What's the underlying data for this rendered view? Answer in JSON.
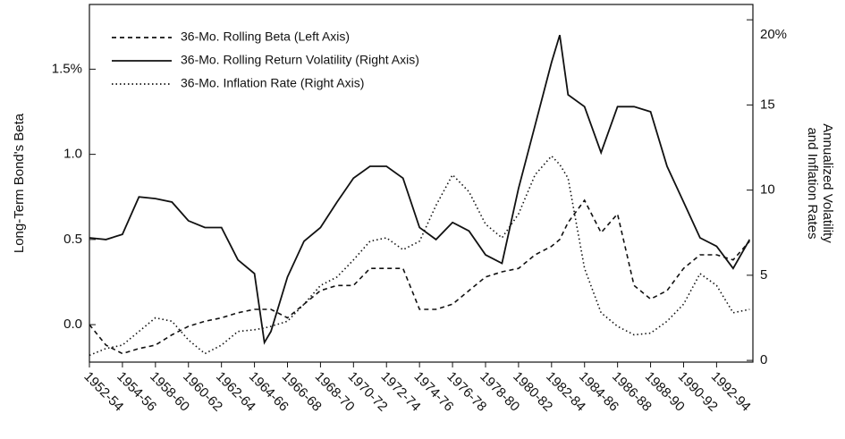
{
  "chart_data": {
    "type": "line",
    "ylabel": "Long-Term Bond's Beta",
    "y2label": [
      "Annualized Volatility",
      "and Inflation Rates"
    ],
    "xlim": [
      1952,
      1992.2
    ],
    "xticks": [
      {
        "value": 1952,
        "label": "1952-54"
      },
      {
        "value": 1954,
        "label": "1954-56"
      },
      {
        "value": 1956,
        "label": "1958-60"
      },
      {
        "value": 1958,
        "label": "1960-62"
      },
      {
        "value": 1960,
        "label": "1962-64"
      },
      {
        "value": 1962,
        "label": "1964-66"
      },
      {
        "value": 1964,
        "label": "1966-68"
      },
      {
        "value": 1966,
        "label": "1968-70"
      },
      {
        "value": 1968,
        "label": "1970-72"
      },
      {
        "value": 1970,
        "label": "1972-74"
      },
      {
        "value": 1972,
        "label": "1974-76"
      },
      {
        "value": 1974,
        "label": "1976-78"
      },
      {
        "value": 1976,
        "label": "1978-80"
      },
      {
        "value": 1978,
        "label": "1980-82"
      },
      {
        "value": 1980,
        "label": "1982-84"
      },
      {
        "value": 1982,
        "label": "1984-86"
      },
      {
        "value": 1984,
        "label": "1986-88"
      },
      {
        "value": 1986,
        "label": "1988-90"
      },
      {
        "value": 1988,
        "label": "1990-92"
      },
      {
        "value": 1990,
        "label": "1992-94"
      }
    ],
    "ylim": [
      -0.22,
      1.88
    ],
    "yticks": [
      {
        "value": 0,
        "label": "0.0"
      },
      0.5,
      {
        "value": 1,
        "label": "1.0"
      },
      {
        "value": 1.5,
        "label": "1.5%"
      }
    ],
    "y2lim": [
      -0.1,
      20.9
    ],
    "y2ticks": [
      0,
      5,
      10,
      15,
      {
        "value": 20,
        "label": "20%"
      }
    ],
    "x": [
      1952,
      1953,
      1954,
      1955,
      1956,
      1957,
      1958,
      1959,
      1960,
      1961,
      1962,
      1962.6,
      1963,
      1964,
      1965,
      1966,
      1967,
      1968,
      1969,
      1970,
      1971,
      1972,
      1973,
      1974,
      1975,
      1976,
      1977,
      1978,
      1979,
      1980,
      1980.5,
      1981,
      1982,
      1983,
      1984,
      1985,
      1986,
      1987,
      1988,
      1989,
      1990,
      1991,
      1992
    ],
    "series": [
      {
        "name": "36-Mo. Rolling Beta (Left Axis)",
        "color": "#111111",
        "style": "dashed",
        "values": [
          0.0,
          -0.12,
          -0.17,
          -0.14,
          -0.12,
          -0.06,
          -0.01,
          0.02,
          0.04,
          0.07,
          0.09,
          0.09,
          0.09,
          0.04,
          0.12,
          0.2,
          0.23,
          0.23,
          0.33,
          0.33,
          0.33,
          0.09,
          0.09,
          0.12,
          0.2,
          0.28,
          0.31,
          0.33,
          0.41,
          0.46,
          0.5,
          0.6,
          0.73,
          0.54,
          0.65,
          0.23,
          0.15,
          0.2,
          0.33,
          0.41,
          0.41,
          0.38,
          0.49
        ]
      },
      {
        "name": "36-Mo. Rolling Return Volatility (Right Axis)",
        "color": "#111111",
        "style": "solid",
        "axis": "y2",
        "values": [
          7.2,
          7.1,
          7.4,
          9.6,
          9.5,
          9.3,
          8.2,
          7.8,
          7.8,
          5.9,
          5.1,
          1.05,
          1.7,
          4.9,
          7.0,
          7.8,
          9.3,
          10.7,
          11.4,
          11.4,
          10.7,
          7.8,
          7.1,
          8.1,
          7.6,
          6.2,
          5.7,
          10.1,
          13.8,
          17.5,
          19.1,
          15.6,
          14.9,
          12.2,
          14.9,
          14.9,
          14.6,
          11.4,
          9.3,
          7.2,
          6.7,
          5.4,
          7.1
        ]
      },
      {
        "name": "36-Mo. Inflation Rate (Right Axis)",
        "color": "#111111",
        "style": "dotted",
        "axis": "y2",
        "values": [
          0.3,
          0.7,
          0.9,
          1.7,
          2.5,
          2.3,
          1.2,
          0.4,
          0.9,
          1.7,
          1.8,
          1.9,
          2.0,
          2.3,
          3.3,
          4.4,
          4.9,
          5.9,
          7.0,
          7.2,
          6.5,
          7.0,
          9.1,
          10.9,
          9.9,
          8.0,
          7.2,
          8.6,
          10.9,
          12.0,
          11.5,
          10.7,
          5.4,
          2.8,
          2.0,
          1.5,
          1.6,
          2.3,
          3.3,
          5.1,
          4.4,
          2.8,
          3.0
        ]
      }
    ]
  }
}
